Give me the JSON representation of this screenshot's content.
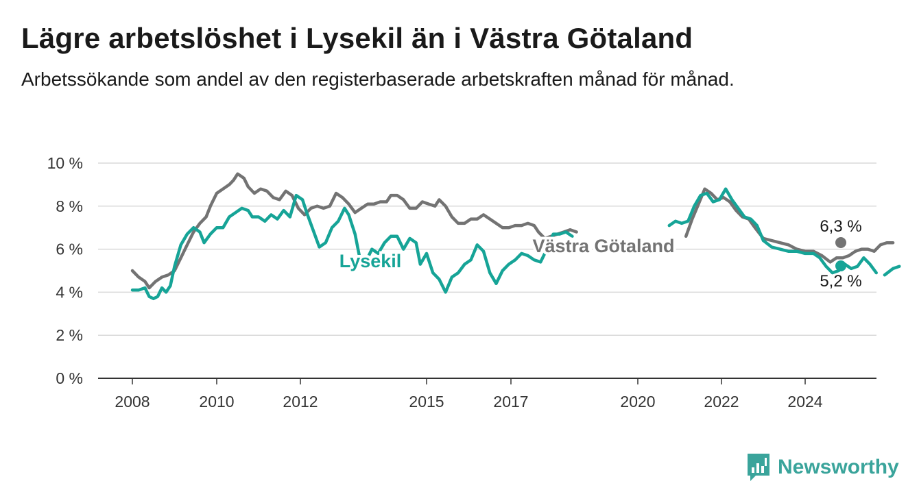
{
  "header": {
    "title": "Lägre arbetslöshet i Lysekil än i Västra Götaland",
    "subtitle": "Arbetssökande som andel av den registerbaserade arbetskraften månad för månad."
  },
  "brand": {
    "name": "Newsworthy",
    "color": "#3aa49b",
    "icon": "bar-chart-icon"
  },
  "chart_data": {
    "type": "line",
    "y_ticks": [
      "0 %",
      "2 %",
      "4 %",
      "6 %",
      "8 %",
      "10 %"
    ],
    "y_tick_values": [
      0,
      2,
      4,
      6,
      8,
      10
    ],
    "ylim": [
      0,
      10
    ],
    "x_ticks": [
      "2008",
      "2010",
      "2012",
      "2015",
      "2017",
      "2020",
      "2022",
      "2024"
    ],
    "xlim": [
      2008,
      2025.5
    ],
    "grid": true,
    "series": [
      {
        "name": "Västra Götaland",
        "color": "#737373",
        "end_label": "6,3 %",
        "points": [
          [
            2008.0,
            5.0
          ],
          [
            2008.15,
            4.7
          ],
          [
            2008.3,
            4.5
          ],
          [
            2008.4,
            4.2
          ],
          [
            2008.55,
            4.5
          ],
          [
            2008.7,
            4.7
          ],
          [
            2008.85,
            4.8
          ],
          [
            2009.0,
            5.0
          ],
          [
            2009.15,
            5.6
          ],
          [
            2009.3,
            6.2
          ],
          [
            2009.45,
            6.8
          ],
          [
            2009.6,
            7.2
          ],
          [
            2009.75,
            7.5
          ],
          [
            2009.85,
            8.0
          ],
          [
            2010.0,
            8.6
          ],
          [
            2010.15,
            8.8
          ],
          [
            2010.3,
            9.0
          ],
          [
            2010.4,
            9.2
          ],
          [
            2010.5,
            9.5
          ],
          [
            2010.65,
            9.3
          ],
          [
            2010.75,
            8.9
          ],
          [
            2010.9,
            8.6
          ],
          [
            2011.05,
            8.8
          ],
          [
            2011.2,
            8.7
          ],
          [
            2011.35,
            8.4
          ],
          [
            2011.5,
            8.3
          ],
          [
            2011.65,
            8.7
          ],
          [
            2011.8,
            8.5
          ],
          [
            2011.95,
            7.9
          ],
          [
            2012.1,
            7.6
          ],
          [
            2012.25,
            7.9
          ],
          [
            2012.4,
            8.0
          ],
          [
            2012.55,
            7.9
          ],
          [
            2012.7,
            8.0
          ],
          [
            2012.85,
            8.6
          ],
          [
            2013.0,
            8.4
          ],
          [
            2013.15,
            8.1
          ],
          [
            2013.3,
            7.7
          ],
          [
            2013.45,
            7.9
          ],
          [
            2013.6,
            8.1
          ],
          [
            2013.75,
            8.1
          ],
          [
            2013.9,
            8.2
          ],
          [
            2014.05,
            8.2
          ],
          [
            2014.15,
            8.5
          ],
          [
            2014.3,
            8.5
          ],
          [
            2014.45,
            8.3
          ],
          [
            2014.6,
            7.9
          ],
          [
            2014.75,
            7.9
          ],
          [
            2014.9,
            8.2
          ],
          [
            2015.05,
            8.1
          ],
          [
            2015.2,
            8.0
          ],
          [
            2015.3,
            8.3
          ],
          [
            2015.45,
            8.0
          ],
          [
            2015.6,
            7.5
          ],
          [
            2015.75,
            7.2
          ],
          [
            2015.9,
            7.2
          ],
          [
            2016.05,
            7.4
          ],
          [
            2016.2,
            7.4
          ],
          [
            2016.35,
            7.6
          ],
          [
            2016.5,
            7.4
          ],
          [
            2016.65,
            7.2
          ],
          [
            2016.8,
            7.0
          ],
          [
            2016.95,
            7.0
          ],
          [
            2017.1,
            7.1
          ],
          [
            2017.25,
            7.1
          ],
          [
            2017.4,
            7.2
          ],
          [
            2017.55,
            7.1
          ],
          [
            2017.65,
            6.8
          ],
          [
            2017.8,
            6.5
          ],
          [
            2017.95,
            6.6
          ],
          [
            2018.1,
            6.7
          ],
          [
            2018.25,
            6.8
          ],
          [
            2018.4,
            6.9
          ],
          [
            2018.55,
            6.8
          ]
        ],
        "points_late": [
          [
            2023.0,
            6.5
          ],
          [
            2023.2,
            6.4
          ],
          [
            2023.4,
            6.3
          ],
          [
            2023.6,
            6.2
          ],
          [
            2023.8,
            6.0
          ],
          [
            2024.0,
            5.9
          ],
          [
            2024.2,
            5.9
          ],
          [
            2024.4,
            5.7
          ],
          [
            2024.6,
            5.4
          ],
          [
            2024.75,
            5.6
          ],
          [
            2024.9,
            5.6
          ],
          [
            2025.05,
            5.7
          ],
          [
            2025.2,
            5.9
          ],
          [
            2025.35,
            6.0
          ],
          [
            2025.5,
            6.0
          ],
          [
            2025.65,
            5.9
          ],
          [
            2025.8,
            6.2
          ],
          [
            2025.95,
            6.3
          ],
          [
            2026.1,
            6.3
          ]
        ],
        "points_mid": [
          [
            2021.15,
            6.6
          ],
          [
            2021.3,
            7.4
          ],
          [
            2021.45,
            8.1
          ],
          [
            2021.6,
            8.8
          ],
          [
            2021.75,
            8.6
          ],
          [
            2021.9,
            8.3
          ],
          [
            2022.05,
            8.4
          ],
          [
            2022.2,
            8.2
          ],
          [
            2022.35,
            7.8
          ],
          [
            2022.5,
            7.5
          ],
          [
            2022.65,
            7.4
          ],
          [
            2022.8,
            7.0
          ],
          [
            2023.0,
            6.5
          ]
        ]
      },
      {
        "name": "Lysekil",
        "color": "#16a497",
        "end_label": "5,2 %",
        "points": [
          [
            2008.0,
            4.1
          ],
          [
            2008.15,
            4.1
          ],
          [
            2008.3,
            4.2
          ],
          [
            2008.4,
            3.8
          ],
          [
            2008.5,
            3.7
          ],
          [
            2008.6,
            3.8
          ],
          [
            2008.7,
            4.2
          ],
          [
            2008.8,
            4.0
          ],
          [
            2008.9,
            4.3
          ],
          [
            2009.0,
            5.2
          ],
          [
            2009.15,
            6.2
          ],
          [
            2009.3,
            6.7
          ],
          [
            2009.45,
            7.0
          ],
          [
            2009.6,
            6.8
          ],
          [
            2009.7,
            6.3
          ],
          [
            2009.85,
            6.7
          ],
          [
            2010.0,
            7.0
          ],
          [
            2010.15,
            7.0
          ],
          [
            2010.3,
            7.5
          ],
          [
            2010.45,
            7.7
          ],
          [
            2010.6,
            7.9
          ],
          [
            2010.75,
            7.8
          ],
          [
            2010.85,
            7.5
          ],
          [
            2011.0,
            7.5
          ],
          [
            2011.15,
            7.3
          ],
          [
            2011.3,
            7.6
          ],
          [
            2011.45,
            7.4
          ],
          [
            2011.6,
            7.8
          ],
          [
            2011.75,
            7.5
          ],
          [
            2011.9,
            8.5
          ],
          [
            2012.05,
            8.3
          ],
          [
            2012.15,
            7.7
          ],
          [
            2012.3,
            6.9
          ],
          [
            2012.45,
            6.1
          ],
          [
            2012.6,
            6.3
          ],
          [
            2012.75,
            7.0
          ],
          [
            2012.9,
            7.3
          ],
          [
            2013.05,
            7.9
          ],
          [
            2013.15,
            7.6
          ],
          [
            2013.3,
            6.7
          ],
          [
            2013.4,
            5.7
          ],
          [
            2013.55,
            5.4
          ],
          [
            2013.7,
            6.0
          ],
          [
            2013.85,
            5.8
          ],
          [
            2014.0,
            6.3
          ],
          [
            2014.15,
            6.6
          ],
          [
            2014.3,
            6.6
          ],
          [
            2014.45,
            6.0
          ],
          [
            2014.6,
            6.5
          ],
          [
            2014.75,
            6.3
          ],
          [
            2014.85,
            5.3
          ],
          [
            2015.0,
            5.8
          ],
          [
            2015.15,
            4.9
          ],
          [
            2015.3,
            4.6
          ],
          [
            2015.45,
            4.0
          ],
          [
            2015.6,
            4.7
          ],
          [
            2015.75,
            4.9
          ],
          [
            2015.9,
            5.3
          ],
          [
            2016.05,
            5.5
          ],
          [
            2016.2,
            6.2
          ],
          [
            2016.35,
            5.9
          ],
          [
            2016.5,
            4.9
          ],
          [
            2016.65,
            4.4
          ],
          [
            2016.8,
            5.0
          ],
          [
            2016.95,
            5.3
          ],
          [
            2017.1,
            5.5
          ],
          [
            2017.25,
            5.8
          ],
          [
            2017.4,
            5.7
          ],
          [
            2017.55,
            5.5
          ],
          [
            2017.7,
            5.4
          ],
          [
            2017.85,
            6.0
          ],
          [
            2018.0,
            6.7
          ],
          [
            2018.15,
            6.7
          ],
          [
            2018.3,
            6.8
          ],
          [
            2018.45,
            6.6
          ]
        ],
        "points_late": [
          [
            2023.0,
            6.4
          ],
          [
            2023.2,
            6.1
          ],
          [
            2023.4,
            6.0
          ],
          [
            2023.6,
            5.9
          ],
          [
            2023.8,
            5.9
          ],
          [
            2024.0,
            5.8
          ],
          [
            2024.2,
            5.8
          ],
          [
            2024.35,
            5.6
          ],
          [
            2024.5,
            5.2
          ],
          [
            2024.65,
            4.9
          ],
          [
            2024.8,
            5.0
          ],
          [
            2024.95,
            5.3
          ],
          [
            2025.1,
            5.1
          ],
          [
            2025.25,
            5.2
          ],
          [
            2025.4,
            5.6
          ],
          [
            2025.55,
            5.3
          ],
          [
            2025.7,
            4.9
          ]
        ],
        "points_tail": [
          [
            2025.9,
            4.8
          ],
          [
            2026.1,
            5.1
          ],
          [
            2026.25,
            5.2
          ]
        ],
        "points_mid": [
          [
            2020.75,
            7.1
          ],
          [
            2020.9,
            7.3
          ],
          [
            2021.05,
            7.2
          ],
          [
            2021.2,
            7.3
          ],
          [
            2021.35,
            8.0
          ],
          [
            2021.5,
            8.5
          ],
          [
            2021.65,
            8.6
          ],
          [
            2021.8,
            8.2
          ],
          [
            2021.95,
            8.3
          ],
          [
            2022.1,
            8.8
          ],
          [
            2022.25,
            8.3
          ],
          [
            2022.4,
            7.9
          ],
          [
            2022.55,
            7.5
          ],
          [
            2022.7,
            7.4
          ],
          [
            2022.85,
            7.1
          ],
          [
            2023.0,
            6.4
          ]
        ]
      }
    ]
  }
}
